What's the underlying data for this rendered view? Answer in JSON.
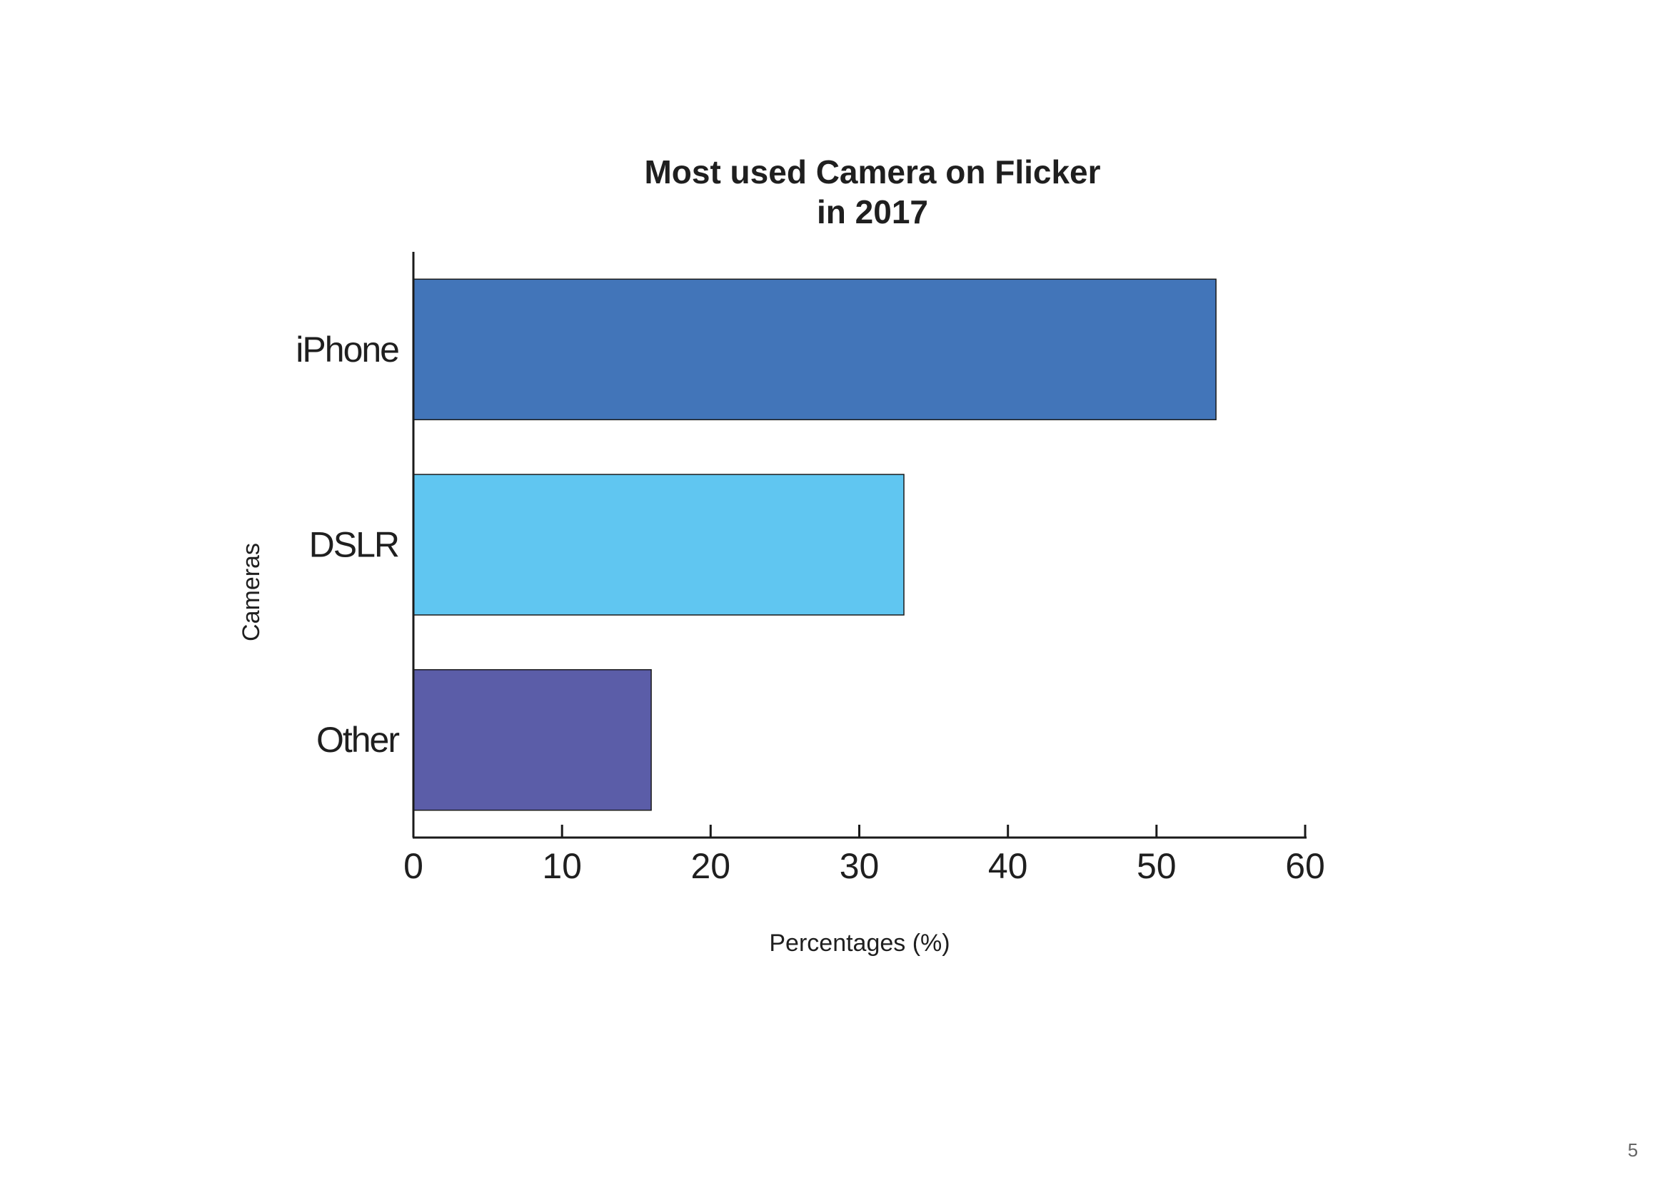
{
  "chart_data": {
    "type": "bar",
    "orientation": "horizontal",
    "title": [
      "Most used Camera on Flicker",
      "in 2017"
    ],
    "xlabel": "Percentages (%)",
    "ylabel": "Cameras",
    "categories": [
      "iPhone",
      "DSLR",
      "Other"
    ],
    "values": [
      54,
      33,
      16
    ],
    "colors": [
      "#4275b9",
      "#60c6f1",
      "#5b5da8"
    ],
    "xlim": [
      0,
      60
    ],
    "xticks": [
      0,
      10,
      20,
      30,
      40,
      50,
      60
    ],
    "grid": false,
    "legend": "none"
  },
  "page": {
    "number": "5"
  }
}
